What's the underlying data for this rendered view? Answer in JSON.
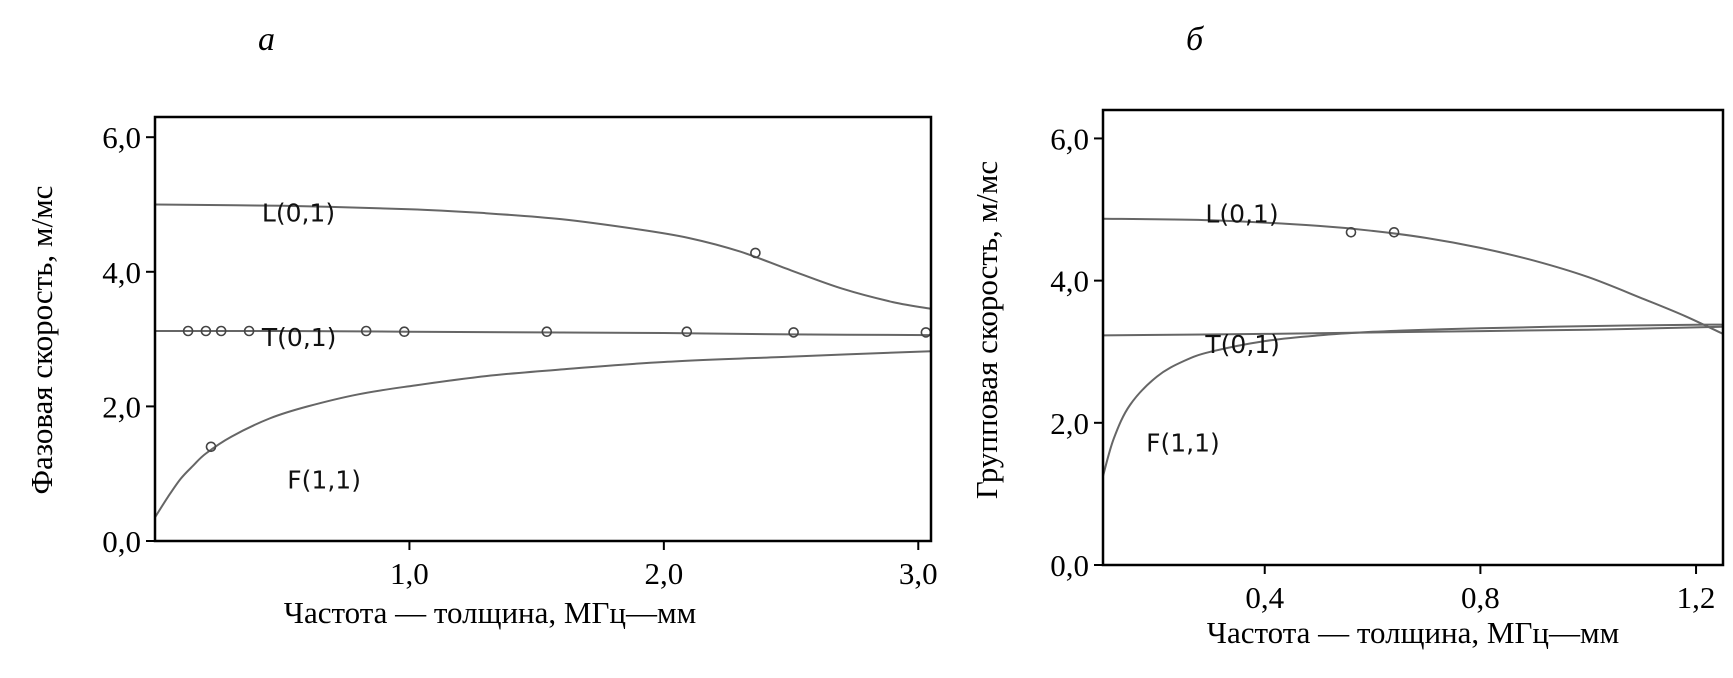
{
  "chart_data": [
    {
      "type": "line",
      "panel_label": "а",
      "xlabel": "Частота — толщина, МГц—мм",
      "ylabel": "Фазовая скорость, м/мс",
      "xlim": [
        0,
        3.05
      ],
      "ylim": [
        0,
        6.3
      ],
      "x_ticks": [
        {
          "v": 1.0,
          "label": "1,0"
        },
        {
          "v": 2.0,
          "label": "2,0"
        },
        {
          "v": 3.0,
          "label": "3,0"
        }
      ],
      "y_ticks": [
        {
          "v": 0,
          "label": "0,0"
        },
        {
          "v": 2.0,
          "label": "2,0"
        },
        {
          "v": 4.0,
          "label": "4,0"
        },
        {
          "v": 6.0,
          "label": "6,0"
        }
      ],
      "grid": false,
      "series": [
        {
          "name": "L(0,1)",
          "label_at": [
            0.42,
            4.75
          ],
          "x": [
            0.0,
            0.5,
            1.0,
            1.3,
            1.6,
            1.9,
            2.1,
            2.3,
            2.5,
            2.7,
            2.9,
            3.05
          ],
          "y": [
            5.0,
            4.98,
            4.93,
            4.87,
            4.78,
            4.63,
            4.5,
            4.3,
            4.02,
            3.75,
            3.55,
            3.45
          ],
          "markers": [
            {
              "x": 2.36,
              "y": 4.28
            }
          ]
        },
        {
          "name": "T(0,1)",
          "label_at": [
            0.42,
            2.9
          ],
          "x": [
            0.0,
            0.5,
            1.0,
            1.5,
            2.0,
            2.5,
            3.05
          ],
          "y": [
            3.12,
            3.12,
            3.11,
            3.1,
            3.09,
            3.07,
            3.06
          ],
          "markers": [
            {
              "x": 0.13,
              "y": 3.12
            },
            {
              "x": 0.2,
              "y": 3.12
            },
            {
              "x": 0.26,
              "y": 3.12
            },
            {
              "x": 0.37,
              "y": 3.12
            },
            {
              "x": 0.83,
              "y": 3.12
            },
            {
              "x": 0.98,
              "y": 3.11
            },
            {
              "x": 1.54,
              "y": 3.11
            },
            {
              "x": 2.09,
              "y": 3.11
            },
            {
              "x": 2.51,
              "y": 3.1
            },
            {
              "x": 3.03,
              "y": 3.1
            }
          ]
        },
        {
          "name": "F(1,1)",
          "label_at": [
            0.52,
            0.78
          ],
          "x": [
            0.0,
            0.05,
            0.1,
            0.15,
            0.2,
            0.3,
            0.45,
            0.6,
            0.8,
            1.0,
            1.3,
            1.6,
            2.0,
            2.5,
            3.05
          ],
          "y": [
            0.35,
            0.65,
            0.92,
            1.12,
            1.3,
            1.55,
            1.82,
            2.0,
            2.18,
            2.3,
            2.45,
            2.55,
            2.66,
            2.74,
            2.82
          ],
          "markers": [
            {
              "x": 0.22,
              "y": 1.4
            }
          ]
        }
      ]
    },
    {
      "type": "line",
      "panel_label": "б",
      "xlabel": "Частота — толщина, МГц—мм",
      "ylabel": "Групповая скорость, м/мс",
      "xlim": [
        0.1,
        1.25
      ],
      "ylim": [
        0,
        6.4
      ],
      "x_ticks": [
        {
          "v": 0.4,
          "label": "0,4"
        },
        {
          "v": 0.8,
          "label": "0,8"
        },
        {
          "v": 1.2,
          "label": "1,2"
        }
      ],
      "y_ticks": [
        {
          "v": 0,
          "label": "0,0"
        },
        {
          "v": 2.0,
          "label": "2,0"
        },
        {
          "v": 4.0,
          "label": "4,0"
        },
        {
          "v": 6.0,
          "label": "6,0"
        }
      ],
      "grid": false,
      "series": [
        {
          "name": "L(0,1)",
          "label_at": [
            0.29,
            4.82
          ],
          "x": [
            0.1,
            0.3,
            0.5,
            0.6,
            0.7,
            0.8,
            0.9,
            1.0,
            1.1,
            1.18,
            1.25
          ],
          "y": [
            4.87,
            4.85,
            4.77,
            4.7,
            4.6,
            4.46,
            4.28,
            4.05,
            3.75,
            3.5,
            3.25
          ],
          "markers": [
            {
              "x": 0.56,
              "y": 4.68
            },
            {
              "x": 0.64,
              "y": 4.68
            }
          ]
        },
        {
          "name": "T(0,1)",
          "label_at": [
            0.29,
            2.98
          ],
          "x": [
            0.1,
            0.4,
            0.7,
            1.0,
            1.25
          ],
          "y": [
            3.23,
            3.25,
            3.28,
            3.31,
            3.35
          ],
          "markers": []
        },
        {
          "name": "F(1,1)",
          "label_at": [
            0.18,
            1.6
          ],
          "x": [
            0.1,
            0.12,
            0.15,
            0.2,
            0.25,
            0.3,
            0.4,
            0.5,
            0.6,
            0.7,
            0.8,
            1.0,
            1.2,
            1.25
          ],
          "y": [
            1.25,
            1.78,
            2.25,
            2.65,
            2.87,
            3.0,
            3.15,
            3.23,
            3.28,
            3.31,
            3.33,
            3.36,
            3.38,
            3.38
          ],
          "markers": []
        }
      ]
    }
  ]
}
